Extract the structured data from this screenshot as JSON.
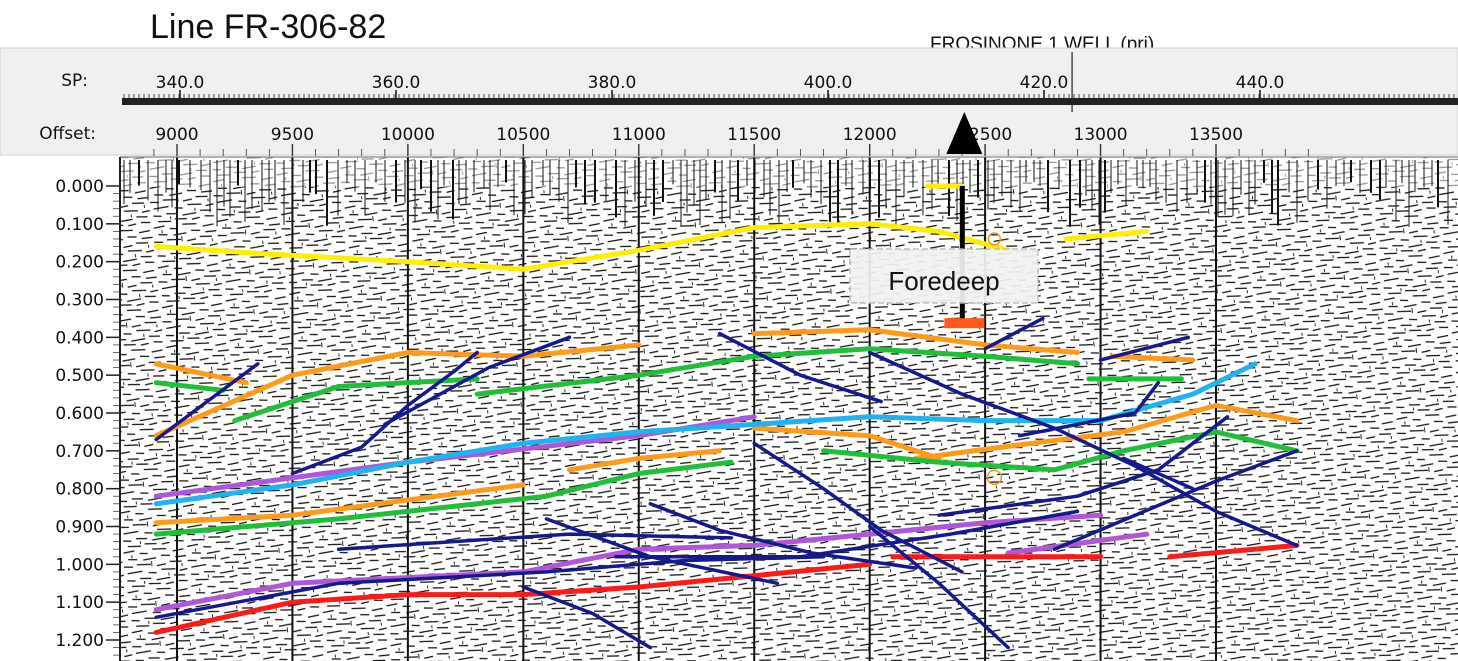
{
  "title": "Line FR-306-82",
  "well_label": "FROSINONE 1 WELL (prj)",
  "header": {
    "sp_label": "SP:",
    "offset_label": "Offset:",
    "sp_ticks": [
      {
        "value": 340,
        "text": "340.0"
      },
      {
        "value": 360,
        "text": "360.0"
      },
      {
        "value": 380,
        "text": "380.0"
      },
      {
        "value": 400,
        "text": "400.0"
      },
      {
        "value": 420,
        "text": "420.0"
      },
      {
        "value": 440,
        "text": "440.0"
      }
    ],
    "offset_ticks": [
      {
        "value": 9000,
        "text": "9000"
      },
      {
        "value": 9500,
        "text": "9500"
      },
      {
        "value": 10000,
        "text": "10000"
      },
      {
        "value": 10500,
        "text": "10500"
      },
      {
        "value": 11000,
        "text": "11000"
      },
      {
        "value": 11500,
        "text": "11500"
      },
      {
        "value": 12000,
        "text": "12000"
      },
      {
        "value": 12500,
        "text": "12500"
      },
      {
        "value": 13000,
        "text": "13000"
      },
      {
        "value": 13500,
        "text": "13500"
      }
    ]
  },
  "time_ticks": [
    "0.000",
    "0.100",
    "0.200",
    "0.300",
    "0.400",
    "0.500",
    "0.600",
    "0.700",
    "0.800",
    "0.900",
    "1.000",
    "1.100",
    "1.200"
  ],
  "annotation": "Foredeep",
  "colors": {
    "yellow": "#ffee00",
    "orange": "#ff9a1a",
    "green": "#1fbf3a",
    "purple": "#b056d8",
    "cyan": "#1fb4f0",
    "red": "#ff1a1a",
    "navy": "#141a8c",
    "well_marker": "#000000"
  },
  "horizons": [
    {
      "color": "yellow",
      "points": [
        [
          8910,
          0.16
        ],
        [
          9400,
          0.18
        ],
        [
          10000,
          0.2
        ],
        [
          10500,
          0.22
        ],
        [
          11000,
          0.17
        ],
        [
          11500,
          0.11
        ],
        [
          12000,
          0.1
        ],
        [
          12300,
          0.12
        ],
        [
          12600,
          0.17
        ]
      ]
    },
    {
      "color": "yellow",
      "points": [
        [
          12850,
          0.14
        ],
        [
          13200,
          0.12
        ]
      ]
    },
    {
      "color": "yellow",
      "points": [
        [
          12250,
          0.0
        ],
        [
          12400,
          0.0
        ]
      ]
    },
    {
      "color": "orange",
      "points": [
        [
          8910,
          0.47
        ],
        [
          9300,
          0.52
        ]
      ]
    },
    {
      "color": "orange",
      "points": [
        [
          8910,
          0.66
        ],
        [
          9500,
          0.5
        ],
        [
          10000,
          0.44
        ],
        [
          10500,
          0.45
        ],
        [
          11000,
          0.42
        ]
      ]
    },
    {
      "color": "orange",
      "points": [
        [
          11500,
          0.39
        ],
        [
          12000,
          0.38
        ],
        [
          12500,
          0.42
        ],
        [
          12900,
          0.44
        ]
      ]
    },
    {
      "color": "orange",
      "points": [
        [
          13050,
          0.45
        ],
        [
          13400,
          0.46
        ]
      ]
    },
    {
      "color": "orange",
      "points": [
        [
          11500,
          0.64
        ],
        [
          12000,
          0.66
        ],
        [
          12300,
          0.72
        ]
      ]
    },
    {
      "color": "orange",
      "points": [
        [
          12200,
          0.72
        ],
        [
          12700,
          0.68
        ],
        [
          13100,
          0.65
        ],
        [
          13500,
          0.58
        ],
        [
          13850,
          0.62
        ]
      ]
    },
    {
      "color": "orange",
      "points": [
        [
          10700,
          0.75
        ],
        [
          11000,
          0.72
        ],
        [
          11350,
          0.7
        ]
      ]
    },
    {
      "color": "orange",
      "points": [
        [
          8910,
          0.89
        ],
        [
          9500,
          0.87
        ],
        [
          10000,
          0.83
        ],
        [
          10500,
          0.79
        ]
      ]
    },
    {
      "color": "green",
      "points": [
        [
          8910,
          0.52
        ],
        [
          9200,
          0.54
        ]
      ]
    },
    {
      "color": "green",
      "points": [
        [
          9250,
          0.62
        ],
        [
          9700,
          0.53
        ],
        [
          10300,
          0.51
        ]
      ]
    },
    {
      "color": "green",
      "points": [
        [
          10300,
          0.55
        ],
        [
          11000,
          0.5
        ],
        [
          11500,
          0.45
        ],
        [
          12000,
          0.43
        ],
        [
          12500,
          0.45
        ],
        [
          12900,
          0.47
        ]
      ]
    },
    {
      "color": "green",
      "points": [
        [
          12950,
          0.51
        ],
        [
          13350,
          0.51
        ]
      ]
    },
    {
      "color": "green",
      "points": [
        [
          11800,
          0.7
        ],
        [
          12300,
          0.73
        ],
        [
          12800,
          0.75
        ],
        [
          13100,
          0.7
        ],
        [
          13500,
          0.65
        ],
        [
          13850,
          0.7
        ]
      ]
    },
    {
      "color": "green",
      "points": [
        [
          8910,
          0.92
        ],
        [
          9700,
          0.88
        ],
        [
          10600,
          0.82
        ],
        [
          11000,
          0.76
        ],
        [
          11400,
          0.73
        ]
      ]
    },
    {
      "color": "purple",
      "points": [
        [
          8910,
          1.12
        ],
        [
          9500,
          1.05
        ],
        [
          10500,
          1.02
        ],
        [
          11000,
          0.96
        ],
        [
          11500,
          0.95
        ],
        [
          12000,
          0.92
        ],
        [
          12500,
          0.89
        ],
        [
          13000,
          0.87
        ]
      ]
    },
    {
      "color": "purple",
      "points": [
        [
          8910,
          0.82
        ],
        [
          10000,
          0.73
        ],
        [
          11000,
          0.66
        ],
        [
          11500,
          0.61
        ]
      ]
    },
    {
      "color": "purple",
      "points": [
        [
          12600,
          0.97
        ],
        [
          13200,
          0.92
        ]
      ]
    },
    {
      "color": "cyan",
      "points": [
        [
          8910,
          0.84
        ],
        [
          9500,
          0.79
        ],
        [
          10000,
          0.73
        ],
        [
          10500,
          0.68
        ],
        [
          11000,
          0.65
        ],
        [
          11500,
          0.63
        ],
        [
          12000,
          0.61
        ],
        [
          12500,
          0.62
        ],
        [
          13000,
          0.62
        ],
        [
          13400,
          0.55
        ],
        [
          13670,
          0.47
        ]
      ]
    },
    {
      "color": "red",
      "points": [
        [
          8910,
          1.18
        ],
        [
          9500,
          1.1
        ],
        [
          10000,
          1.08
        ],
        [
          10500,
          1.08
        ],
        [
          11000,
          1.06
        ],
        [
          11500,
          1.03
        ],
        [
          12000,
          1.0
        ]
      ]
    },
    {
      "color": "red",
      "points": [
        [
          12100,
          0.98
        ],
        [
          12600,
          0.98
        ],
        [
          13000,
          0.98
        ]
      ]
    },
    {
      "color": "red",
      "points": [
        [
          13300,
          0.98
        ],
        [
          13850,
          0.95
        ]
      ]
    }
  ],
  "faults": [
    [
      [
        8910,
        0.67
      ],
      [
        9350,
        0.47
      ]
    ],
    [
      [
        9500,
        0.76
      ],
      [
        9800,
        0.69
      ],
      [
        10000,
        0.58
      ],
      [
        10200,
        0.49
      ],
      [
        10300,
        0.44
      ]
    ],
    [
      [
        9900,
        0.63
      ],
      [
        10350,
        0.48
      ],
      [
        10700,
        0.4
      ]
    ],
    [
      [
        11350,
        0.39
      ],
      [
        11700,
        0.5
      ],
      [
        12050,
        0.57
      ]
    ],
    [
      [
        11500,
        0.68
      ],
      [
        11800,
        0.8
      ],
      [
        12050,
        0.91
      ],
      [
        12400,
        1.02
      ]
    ],
    [
      [
        12000,
        0.44
      ],
      [
        12400,
        0.55
      ],
      [
        12800,
        0.64
      ],
      [
        13150,
        0.74
      ],
      [
        13500,
        0.86
      ],
      [
        13850,
        0.95
      ]
    ],
    [
      [
        12500,
        0.43
      ],
      [
        12750,
        0.35
      ]
    ],
    [
      [
        13000,
        0.46
      ],
      [
        13380,
        0.4
      ]
    ],
    [
      [
        12650,
        0.66
      ],
      [
        13150,
        0.6
      ],
      [
        13250,
        0.52
      ]
    ],
    [
      [
        11050,
        0.84
      ],
      [
        11350,
        0.91
      ],
      [
        11750,
        0.97
      ],
      [
        12200,
        1.01
      ]
    ],
    [
      [
        12300,
        0.87
      ],
      [
        12900,
        0.82
      ],
      [
        13250,
        0.75
      ],
      [
        13550,
        0.61
      ]
    ],
    [
      [
        10600,
        0.88
      ],
      [
        11050,
        0.98
      ],
      [
        11600,
        1.05
      ]
    ],
    [
      [
        10900,
        0.98
      ],
      [
        11700,
        0.98
      ],
      [
        12350,
        0.92
      ],
      [
        12900,
        0.86
      ]
    ],
    [
      [
        8910,
        1.14
      ],
      [
        9700,
        1.05
      ],
      [
        10600,
        1.02
      ],
      [
        11200,
        0.99
      ],
      [
        11800,
        0.98
      ]
    ],
    [
      [
        9700,
        0.96
      ],
      [
        10700,
        0.92
      ],
      [
        11400,
        0.93
      ]
    ],
    [
      [
        10500,
        1.06
      ],
      [
        10800,
        1.13
      ],
      [
        11050,
        1.22
      ]
    ],
    [
      [
        12000,
        0.9
      ],
      [
        12300,
        1.05
      ],
      [
        12600,
        1.22
      ]
    ],
    [
      [
        12800,
        0.96
      ],
      [
        13150,
        0.87
      ],
      [
        13500,
        0.78
      ],
      [
        13850,
        0.7
      ]
    ],
    [
      [
        13100,
        0.72
      ],
      [
        13400,
        0.8
      ]
    ]
  ]
}
